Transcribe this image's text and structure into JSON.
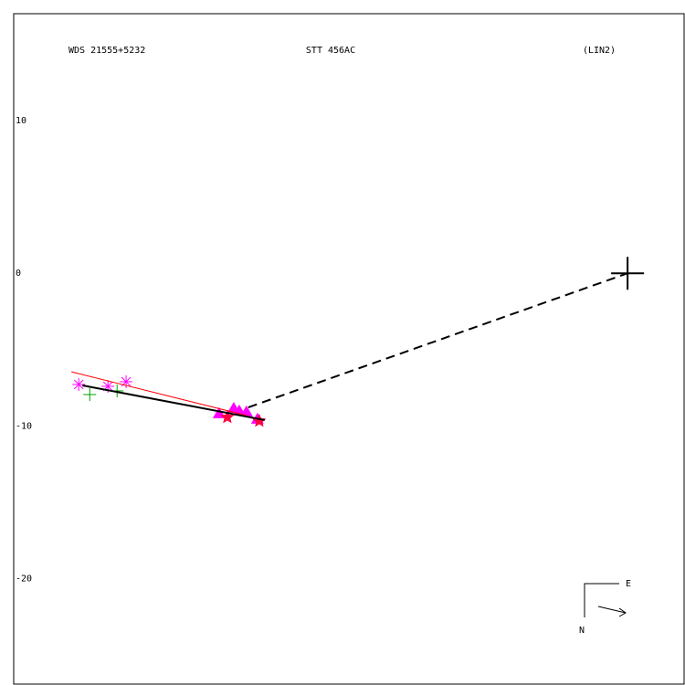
{
  "chart_data": {
    "type": "scatter",
    "texts": {
      "left": "WDS 21555+5232",
      "center": "STT 456AC",
      "right": "(LIN2)"
    },
    "compass": {
      "east": "E",
      "north": "N"
    },
    "xlim": [
      -40.2,
      3.7
    ],
    "ylim": [
      -26.9,
      17.0
    ],
    "yticks": [
      10,
      0,
      -10,
      -20
    ],
    "series": [
      {
        "marker": "asterisk",
        "color": "#ff00ff",
        "x": [
          -35.94,
          -34.03,
          -32.84
        ],
        "y": [
          -7.28,
          -7.4,
          -7.1
        ]
      },
      {
        "marker": "plus",
        "color": "#00a000",
        "x": [
          -35.22,
          -33.43
        ],
        "y": [
          -7.94,
          -7.7
        ]
      },
      {
        "marker": "triangle",
        "color": "#ff00ff",
        "x": [
          -26.75,
          -25.79,
          -25.43,
          -24.96,
          -24.24
        ],
        "y": [
          -9.19,
          -8.84,
          -9.01,
          -9.07,
          -9.55
        ]
      },
      {
        "marker": "star",
        "color": "#ff0040",
        "x": [
          -26.21,
          -24.12
        ],
        "y": [
          -9.43,
          -9.67
        ]
      },
      {
        "marker": "line",
        "color": "#000000",
        "width": 2,
        "x": [
          -35.7,
          -23.76
        ],
        "y": [
          -7.34,
          -9.61
        ]
      },
      {
        "marker": "line",
        "color": "#ff0000",
        "width": 1,
        "x": [
          -36.42,
          -24.96
        ],
        "y": [
          -6.45,
          -9.31
        ]
      },
      {
        "marker": "dashed",
        "color": "#000000",
        "width": 2,
        "x": [
          -24.84,
          0
        ],
        "y": [
          -8.78,
          0
        ]
      },
      {
        "marker": "primary",
        "color": "#000000",
        "x": [
          0
        ],
        "y": [
          0
        ]
      }
    ]
  }
}
